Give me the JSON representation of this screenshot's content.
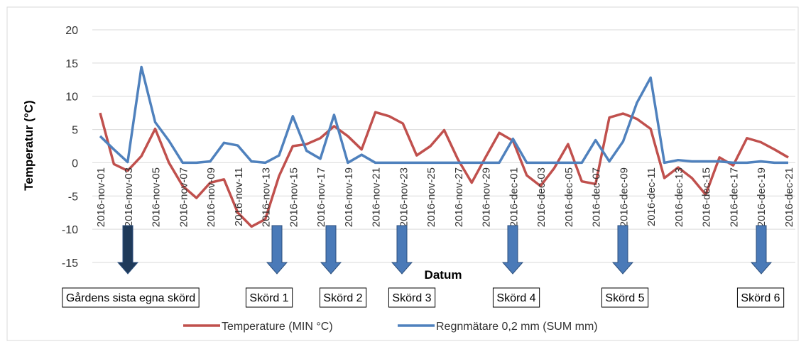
{
  "chart_data": {
    "type": "line",
    "y_label": "Temperatur (°C)",
    "x_label": "Datum",
    "categories": [
      "2016-nov-01",
      null,
      "2016-nov-03",
      null,
      "2016-nov-05",
      null,
      "2016-nov-07",
      null,
      "2016-nov-09",
      null,
      "2016-nov-11",
      null,
      "2016-nov-13",
      null,
      "2016-nov-15",
      null,
      "2016-nov-17",
      null,
      "2016-nov-19",
      null,
      "2016-nov-21",
      null,
      "2016-nov-23",
      null,
      "2016-nov-25",
      null,
      "2016-nov-27",
      null,
      "2016-nov-29",
      null,
      "2016-dec-01",
      null,
      "2016-dec-03",
      null,
      "2016-dec-05",
      null,
      "2016-dec-07",
      null,
      "2016-dec-09",
      null,
      "2016-dec-11",
      null,
      "2016-dec-13",
      null,
      "2016-dec-15",
      null,
      "2016-dec-17",
      null,
      "2016-dec-19",
      null,
      "2016-dec-21"
    ],
    "series": [
      {
        "name": "Temperature (MIN °C)",
        "color": "#c0504d",
        "values": [
          7.5,
          -0.2,
          -1.2,
          1,
          5.1,
          0,
          -3.5,
          -5.3,
          -3,
          -2.5,
          -7.5,
          -9.6,
          -8.5,
          -2,
          2.5,
          2.8,
          3.7,
          5.5,
          4,
          2,
          7.6,
          7,
          5.9,
          1.1,
          2.5,
          4.9,
          0.5,
          -3,
          0.8,
          4.5,
          3.3,
          -1.9,
          -3.5,
          -0.8,
          2.8,
          -2.8,
          -3.2,
          6.8,
          7.4,
          6.6,
          5.1,
          -2.3,
          -0.7,
          -2.3,
          -4.8,
          0.8,
          -0.4,
          3.7,
          3.1,
          2,
          0.8
        ]
      },
      {
        "name": "Regnmätare 0,2 mm (SUM mm)",
        "color": "#4f81bd",
        "values": [
          4,
          2,
          0.1,
          14.4,
          6.1,
          3.3,
          0,
          0,
          0.2,
          3,
          2.6,
          0.2,
          0,
          1.1,
          7,
          1.8,
          0.6,
          7.2,
          0,
          1.2,
          0,
          0,
          0,
          0,
          0,
          0,
          0,
          0,
          0,
          0,
          3.6,
          0,
          0,
          0,
          0,
          0,
          3.4,
          0.2,
          3.2,
          9,
          12.8,
          0,
          0.4,
          0.2,
          0.2,
          0.2,
          0,
          0,
          0.2,
          0,
          0
        ]
      }
    ],
    "ylim": [
      -15,
      20
    ],
    "yticks": [
      -15,
      -10,
      -5,
      0,
      5,
      10,
      15,
      20
    ],
    "grid": true,
    "annotations": [
      "Gårdens sista egna skörd",
      "Skörd 1",
      "Skörd 2",
      "Skörd 3",
      "Skörd 4",
      "Skörd 5",
      "Skörd 6"
    ]
  }
}
